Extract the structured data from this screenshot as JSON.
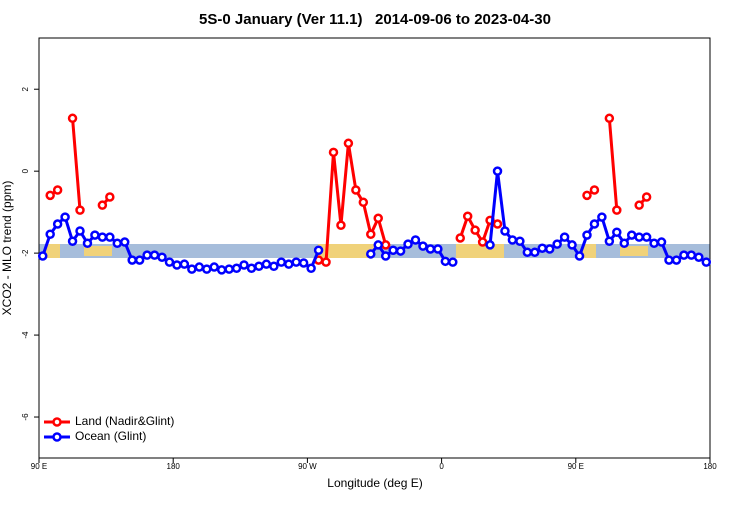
{
  "chart_data": {
    "type": "line",
    "title": "5S-0 January (Ver 11.1)   2014-09-06 to 2023-04-30",
    "xlabel": "Longitude (deg E)",
    "ylabel": "XCO2 - MLO trend (ppm)",
    "x": [
      92.5,
      97.5,
      102.5,
      107.5,
      112.5,
      117.5,
      122.5,
      127.5,
      132.5,
      137.5,
      142.5,
      147.5,
      152.5,
      157.5,
      162.5,
      167.5,
      172.5,
      177.5,
      182.5,
      187.5,
      192.5,
      197.5,
      202.5,
      207.5,
      212.5,
      217.5,
      222.5,
      227.5,
      232.5,
      237.5,
      242.5,
      247.5,
      252.5,
      257.5,
      262.5,
      267.5,
      272.5,
      277.5,
      282.5,
      287.5,
      292.5,
      297.5,
      302.5,
      307.5,
      312.5,
      317.5,
      322.5,
      327.5,
      332.5,
      337.5,
      342.5,
      347.5,
      352.5,
      357.5,
      362.5,
      367.5,
      372.5,
      377.5,
      382.5,
      387.5,
      392.5,
      397.5,
      402.5,
      407.5,
      412.5,
      417.5,
      422.5,
      427.5,
      432.5,
      437.5,
      442.5,
      447.5,
      452.5,
      457.5,
      462.5,
      467.5,
      472.5,
      477.5,
      482.5,
      487.5,
      492.5,
      497.5,
      502.5,
      507.5,
      512.5,
      517.5,
      522.5,
      527.5,
      532.5,
      537.5
    ],
    "series": [
      {
        "name": "Land (Nadir&Glint)",
        "color": "#ff0000",
        "values": [
          null,
          -0.59,
          -0.46,
          null,
          1.29,
          -0.95,
          null,
          null,
          -0.83,
          -0.63,
          null,
          null,
          null,
          null,
          null,
          null,
          null,
          null,
          null,
          null,
          null,
          null,
          null,
          null,
          null,
          null,
          null,
          null,
          null,
          null,
          null,
          null,
          null,
          null,
          null,
          null,
          null,
          -2.17,
          -2.22,
          0.46,
          -1.32,
          0.68,
          -0.46,
          -0.76,
          -1.54,
          -1.15,
          -1.8,
          null,
          null,
          null,
          null,
          null,
          null,
          null,
          null,
          null,
          -1.63,
          -1.1,
          -1.44,
          -1.73,
          -1.2,
          -1.29,
          null,
          null,
          null,
          null,
          null,
          null,
          null,
          null,
          null,
          null,
          null,
          -0.59,
          -0.46,
          null,
          1.29,
          -0.95,
          null,
          null,
          -0.83,
          -0.63,
          null,
          null,
          null,
          null,
          null,
          null,
          null,
          null
        ]
      },
      {
        "name": "Ocean (Glint)",
        "color": "#0000ff",
        "values": [
          -2.07,
          -1.54,
          -1.29,
          -1.12,
          -1.71,
          -1.46,
          -1.76,
          -1.56,
          -1.61,
          -1.61,
          -1.76,
          -1.73,
          -2.17,
          -2.17,
          -2.05,
          -2.05,
          -2.1,
          -2.22,
          -2.29,
          -2.27,
          -2.39,
          -2.34,
          -2.39,
          -2.34,
          -2.41,
          -2.39,
          -2.37,
          -2.29,
          -2.37,
          -2.32,
          -2.27,
          -2.32,
          -2.22,
          -2.27,
          -2.22,
          -2.24,
          -2.37,
          -1.93,
          null,
          null,
          null,
          null,
          null,
          null,
          -2.02,
          -1.8,
          -2.07,
          -1.93,
          -1.95,
          -1.78,
          -1.68,
          -1.83,
          -1.9,
          -1.9,
          -2.2,
          -2.22,
          null,
          null,
          null,
          null,
          -1.8,
          0,
          -1.46,
          -1.68,
          -1.71,
          -1.98,
          -1.98,
          -1.88,
          -1.9,
          -1.78,
          -1.61,
          -1.8,
          -2.07,
          -1.56,
          -1.29,
          -1.12,
          -1.71,
          -1.49,
          -1.76,
          -1.56,
          -1.61,
          -1.61,
          -1.76,
          -1.73,
          -2.17,
          -2.17,
          -2.05,
          -2.05,
          -2.1,
          -2.22
        ]
      }
    ],
    "xlim": [
      90,
      540
    ],
    "xticks": [
      {
        "value": 90,
        "label": "90 E"
      },
      {
        "value": 180,
        "label": "180"
      },
      {
        "value": 270,
        "label": "90 W"
      },
      {
        "value": 360,
        "label": "0"
      },
      {
        "value": 450,
        "label": "90 E"
      },
      {
        "value": 540,
        "label": "180"
      }
    ],
    "ylim": [
      -7,
      3.25
    ],
    "yticks": [
      2,
      0,
      -2,
      -4,
      -6
    ],
    "legend": "bottom-left"
  }
}
